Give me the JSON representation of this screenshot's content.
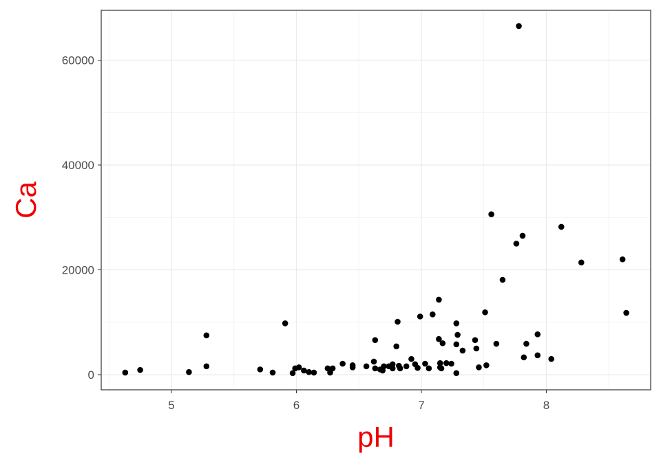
{
  "chart_data": {
    "type": "scatter",
    "x_label": "pH",
    "y_label": "Ca",
    "x": [
      4.63,
      4.75,
      5.14,
      5.28,
      5.28,
      5.71,
      5.81,
      5.91,
      5.97,
      5.99,
      6.02,
      6.06,
      6.1,
      6.14,
      6.25,
      6.27,
      6.29,
      6.37,
      6.45,
      6.45,
      6.56,
      6.62,
      6.63,
      6.63,
      6.67,
      6.69,
      6.7,
      6.74,
      6.77,
      6.77,
      6.8,
      6.81,
      6.82,
      6.83,
      6.88,
      6.92,
      6.95,
      6.97,
      6.99,
      7.03,
      7.06,
      7.09,
      7.14,
      7.14,
      7.15,
      7.15,
      7.16,
      7.17,
      7.2,
      7.24,
      7.28,
      7.28,
      7.28,
      7.29,
      7.33,
      7.43,
      7.44,
      7.46,
      7.51,
      7.52,
      7.56,
      7.6,
      7.65,
      7.76,
      7.78,
      7.81,
      7.82,
      7.84,
      7.93,
      7.93,
      8.04,
      8.12,
      8.28,
      8.61,
      8.64
    ],
    "values": [
      400,
      900,
      500,
      7500,
      1600,
      1000,
      400,
      9800,
      300,
      1200,
      1400,
      800,
      500,
      400,
      1200,
      400,
      1200,
      2100,
      1800,
      1400,
      1600,
      2500,
      6600,
      1200,
      1000,
      800,
      1600,
      1600,
      2000,
      1200,
      5400,
      10100,
      1700,
      1200,
      1600,
      3000,
      2000,
      1300,
      11100,
      2100,
      1200,
      11500,
      14300,
      6800,
      2200,
      1400,
      1200,
      6000,
      2200,
      2100,
      9800,
      5800,
      300,
      7600,
      4600,
      6600,
      5000,
      1400,
      11900,
      1800,
      30600,
      5900,
      18100,
      25000,
      66500,
      26500,
      3300,
      5900,
      7700,
      3700,
      3000,
      28200,
      21400,
      22000,
      11800
    ],
    "color": "#000000",
    "xlim": [
      4.438,
      8.835
    ],
    "xticks": [
      5,
      6,
      7,
      8
    ],
    "ylim": [
      -2885,
      69508
    ],
    "yticks": [
      0,
      20000,
      40000,
      60000
    ],
    "grid": true,
    "minor_grid": true
  }
}
